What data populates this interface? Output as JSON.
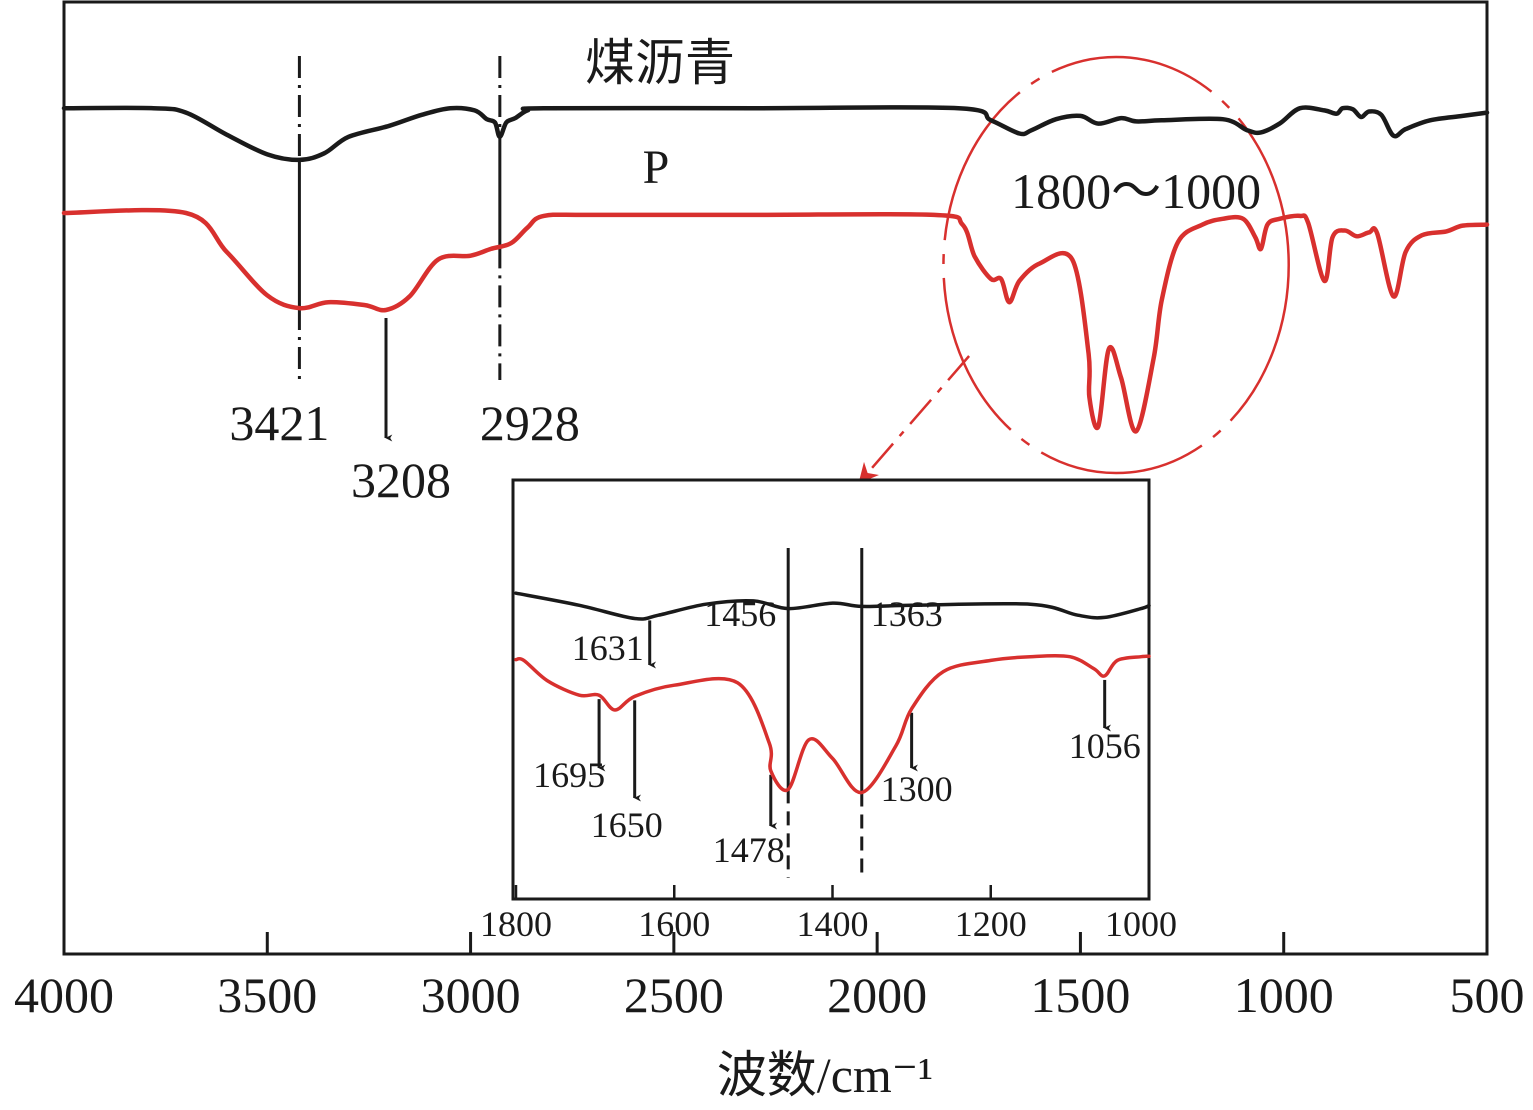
{
  "chart_data": {
    "type": "line",
    "xlabel": "波数/cm⁻¹",
    "ylabel": "",
    "xlim": [
      4000,
      500
    ],
    "x_reversed": true,
    "x_ticks": [
      4000,
      3500,
      3000,
      2500,
      2000,
      1500,
      1000,
      500
    ],
    "y_ticks_shown": false,
    "series_labels": [
      "煤沥青",
      "P"
    ],
    "colors": {
      "coal_pitch": "#1a1a1a",
      "P": "#d8302e",
      "annotation": "#d8302e"
    },
    "series": [
      {
        "label_ref": "煤沥青",
        "color": "#1a1a1a",
        "points": [
          [
            4000,
            0.02
          ],
          [
            3780,
            0.02
          ],
          [
            3700,
            0.06
          ],
          [
            3600,
            0.26
          ],
          [
            3500,
            0.44
          ],
          [
            3421,
            0.49
          ],
          [
            3360,
            0.43
          ],
          [
            3300,
            0.28
          ],
          [
            3200,
            0.18
          ],
          [
            3120,
            0.08
          ],
          [
            3050,
            0.02
          ],
          [
            2990,
            0.04
          ],
          [
            2960,
            0.12
          ],
          [
            2940,
            0.15
          ],
          [
            2928,
            0.28
          ],
          [
            2912,
            0.15
          ],
          [
            2890,
            0.11
          ],
          [
            2860,
            0.04
          ],
          [
            2820,
            0.02
          ],
          [
            2300,
            0.02
          ],
          [
            1800,
            0.02
          ],
          [
            1720,
            0.13
          ],
          [
            1650,
            0.25
          ],
          [
            1620,
            0.22
          ],
          [
            1560,
            0.12
          ],
          [
            1500,
            0.09
          ],
          [
            1456,
            0.16
          ],
          [
            1400,
            0.11
          ],
          [
            1363,
            0.14
          ],
          [
            1300,
            0.13
          ],
          [
            1150,
            0.12
          ],
          [
            1090,
            0.22
          ],
          [
            1056,
            0.24
          ],
          [
            1010,
            0.16
          ],
          [
            960,
            0.02
          ],
          [
            900,
            0.04
          ],
          [
            870,
            0.07
          ],
          [
            855,
            0.02
          ],
          [
            830,
            0.03
          ],
          [
            810,
            0.1
          ],
          [
            790,
            0.05
          ],
          [
            760,
            0.08
          ],
          [
            730,
            0.27
          ],
          [
            700,
            0.21
          ],
          [
            640,
            0.13
          ],
          [
            560,
            0.09
          ],
          [
            500,
            0.06
          ]
        ]
      },
      {
        "label_ref": "P",
        "color": "#d8302e",
        "points": [
          [
            4000,
            0.0
          ],
          [
            3700,
            0.0
          ],
          [
            3600,
            0.4
          ],
          [
            3500,
            0.85
          ],
          [
            3421,
            0.98
          ],
          [
            3350,
            0.92
          ],
          [
            3260,
            0.95
          ],
          [
            3208,
            1.0
          ],
          [
            3150,
            0.86
          ],
          [
            3080,
            0.48
          ],
          [
            3000,
            0.44
          ],
          [
            2950,
            0.37
          ],
          [
            2900,
            0.31
          ],
          [
            2860,
            0.15
          ],
          [
            2820,
            0.03
          ],
          [
            2700,
            0.02
          ],
          [
            2300,
            0.02
          ],
          [
            1860,
            0.02
          ],
          [
            1790,
            0.12
          ],
          [
            1760,
            0.45
          ],
          [
            1720,
            0.68
          ],
          [
            1695,
            0.68
          ],
          [
            1675,
            0.92
          ],
          [
            1650,
            0.7
          ],
          [
            1600,
            0.52
          ],
          [
            1520,
            0.48
          ],
          [
            1480,
            1.45
          ],
          [
            1478,
            1.9
          ],
          [
            1456,
            2.2
          ],
          [
            1430,
            1.4
          ],
          [
            1400,
            1.7
          ],
          [
            1363,
            2.25
          ],
          [
            1320,
            1.5
          ],
          [
            1300,
            0.9
          ],
          [
            1260,
            0.3
          ],
          [
            1200,
            0.12
          ],
          [
            1150,
            0.06
          ],
          [
            1100,
            0.06
          ],
          [
            1070,
            0.25
          ],
          [
            1056,
            0.37
          ],
          [
            1040,
            0.12
          ],
          [
            1010,
            0.06
          ],
          [
            960,
            0.03
          ],
          [
            940,
            0.1
          ],
          [
            900,
            0.7
          ],
          [
            880,
            0.25
          ],
          [
            850,
            0.18
          ],
          [
            820,
            0.24
          ],
          [
            790,
            0.2
          ],
          [
            770,
            0.21
          ],
          [
            730,
            0.86
          ],
          [
            700,
            0.4
          ],
          [
            660,
            0.23
          ],
          [
            600,
            0.19
          ],
          [
            560,
            0.13
          ],
          [
            500,
            0.12
          ]
        ]
      }
    ],
    "main_annotations": [
      {
        "label": "3421",
        "x": 3421,
        "style": "dash-dot-line"
      },
      {
        "label": "3208",
        "x": 3208,
        "style": "arrow-down"
      },
      {
        "label": "2928",
        "x": 2928,
        "style": "dash-dot-line"
      },
      {
        "label": "1800～1000",
        "x_range": [
          1800,
          1000
        ],
        "style": "dashed-ellipse"
      }
    ],
    "inset": {
      "xlim": [
        1800,
        1000
      ],
      "x_ticks": [
        1800,
        1600,
        1400,
        1200,
        1000
      ],
      "annotations": [
        {
          "label": "1631",
          "x": 1631,
          "series": "煤沥青",
          "style": "arrow-down"
        },
        {
          "label": "1456",
          "x": 1456,
          "style": "vertical-line"
        },
        {
          "label": "1363",
          "x": 1363,
          "style": "vertical-line"
        },
        {
          "label": "1695",
          "x": 1695,
          "series": "P",
          "style": "arrow-down"
        },
        {
          "label": "1650",
          "x": 1650,
          "series": "P",
          "style": "arrow-down"
        },
        {
          "label": "1478",
          "x": 1478,
          "series": "P",
          "style": "arrow-down"
        },
        {
          "label": "1300",
          "x": 1300,
          "series": "P",
          "style": "arrow-down"
        },
        {
          "label": "1056",
          "x": 1056,
          "series": "P",
          "style": "arrow-down"
        }
      ]
    }
  }
}
